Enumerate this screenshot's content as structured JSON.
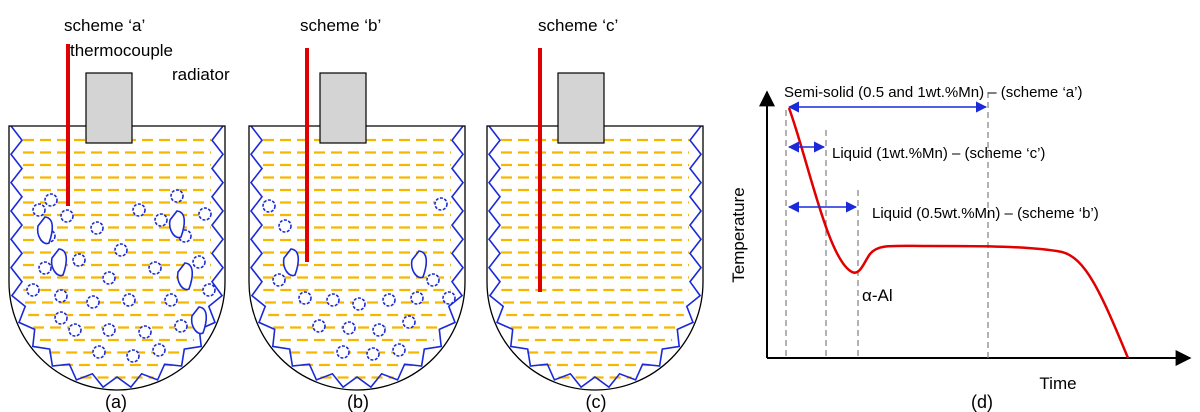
{
  "panels": [
    {
      "scheme_label": "scheme ‘a’",
      "caption": "(a)"
    },
    {
      "scheme_label": "scheme ‘b’",
      "caption": "(b)"
    },
    {
      "scheme_label": "scheme ‘c’",
      "caption": "(c)"
    }
  ],
  "labels": {
    "thermocouple": "thermocouple",
    "radiator": "radiator"
  },
  "graph": {
    "caption": "(d)",
    "ylabel": "Temperature",
    "xlabel": "Time",
    "annotations": {
      "semi_solid": "Semi-solid  (0.5 and 1wt.%Mn)  – (scheme ‘a’)",
      "liquid_1": "Liquid (1wt.%Mn)  – (scheme ‘c’)",
      "liquid_05": "Liquid (0.5wt.%Mn)  – (scheme ‘b’)",
      "alpha_al": "α-Al"
    }
  },
  "colors": {
    "melt_dash": "#f5b800",
    "crucible_zigzag": "#1a2ad8",
    "thermocouple": "#e00000",
    "radiator_fill": "#d4d4d4",
    "arrow": "#1a2ad8",
    "curve": "#e00000",
    "guide_line": "#808080"
  }
}
